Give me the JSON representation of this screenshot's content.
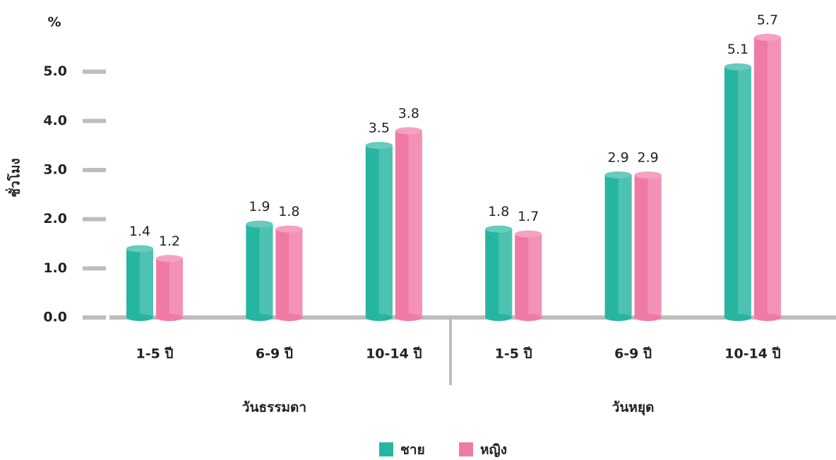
{
  "chart_data": {
    "type": "bar",
    "y_label": "ชั่วโมง",
    "y_unit": "%",
    "categories": [
      "1-5 ปี",
      "6-9 ปี",
      "10-14 ปี",
      "1-5 ปี",
      "6-9 ปี",
      "10-14 ปี"
    ],
    "category_groups": [
      "วันธรรมดา",
      "วันหยุด"
    ],
    "series": [
      {
        "name": "ชาย",
        "color": "#26b5a0",
        "values": [
          1.4,
          1.9,
          3.5,
          1.8,
          2.9,
          5.1
        ]
      },
      {
        "name": "หญิง",
        "color": "#f07aa6",
        "values": [
          1.2,
          1.8,
          3.8,
          1.7,
          2.9,
          5.7
        ]
      }
    ],
    "ylim": [
      0,
      6
    ],
    "yticks": [
      {
        "value": 0,
        "label": "0.0"
      },
      {
        "value": 1,
        "label": "1.0"
      },
      {
        "value": 2,
        "label": "2.0"
      },
      {
        "value": 3,
        "label": "3.0"
      },
      {
        "value": 4,
        "label": "4.0"
      },
      {
        "value": 5,
        "label": "5.0"
      }
    ]
  }
}
